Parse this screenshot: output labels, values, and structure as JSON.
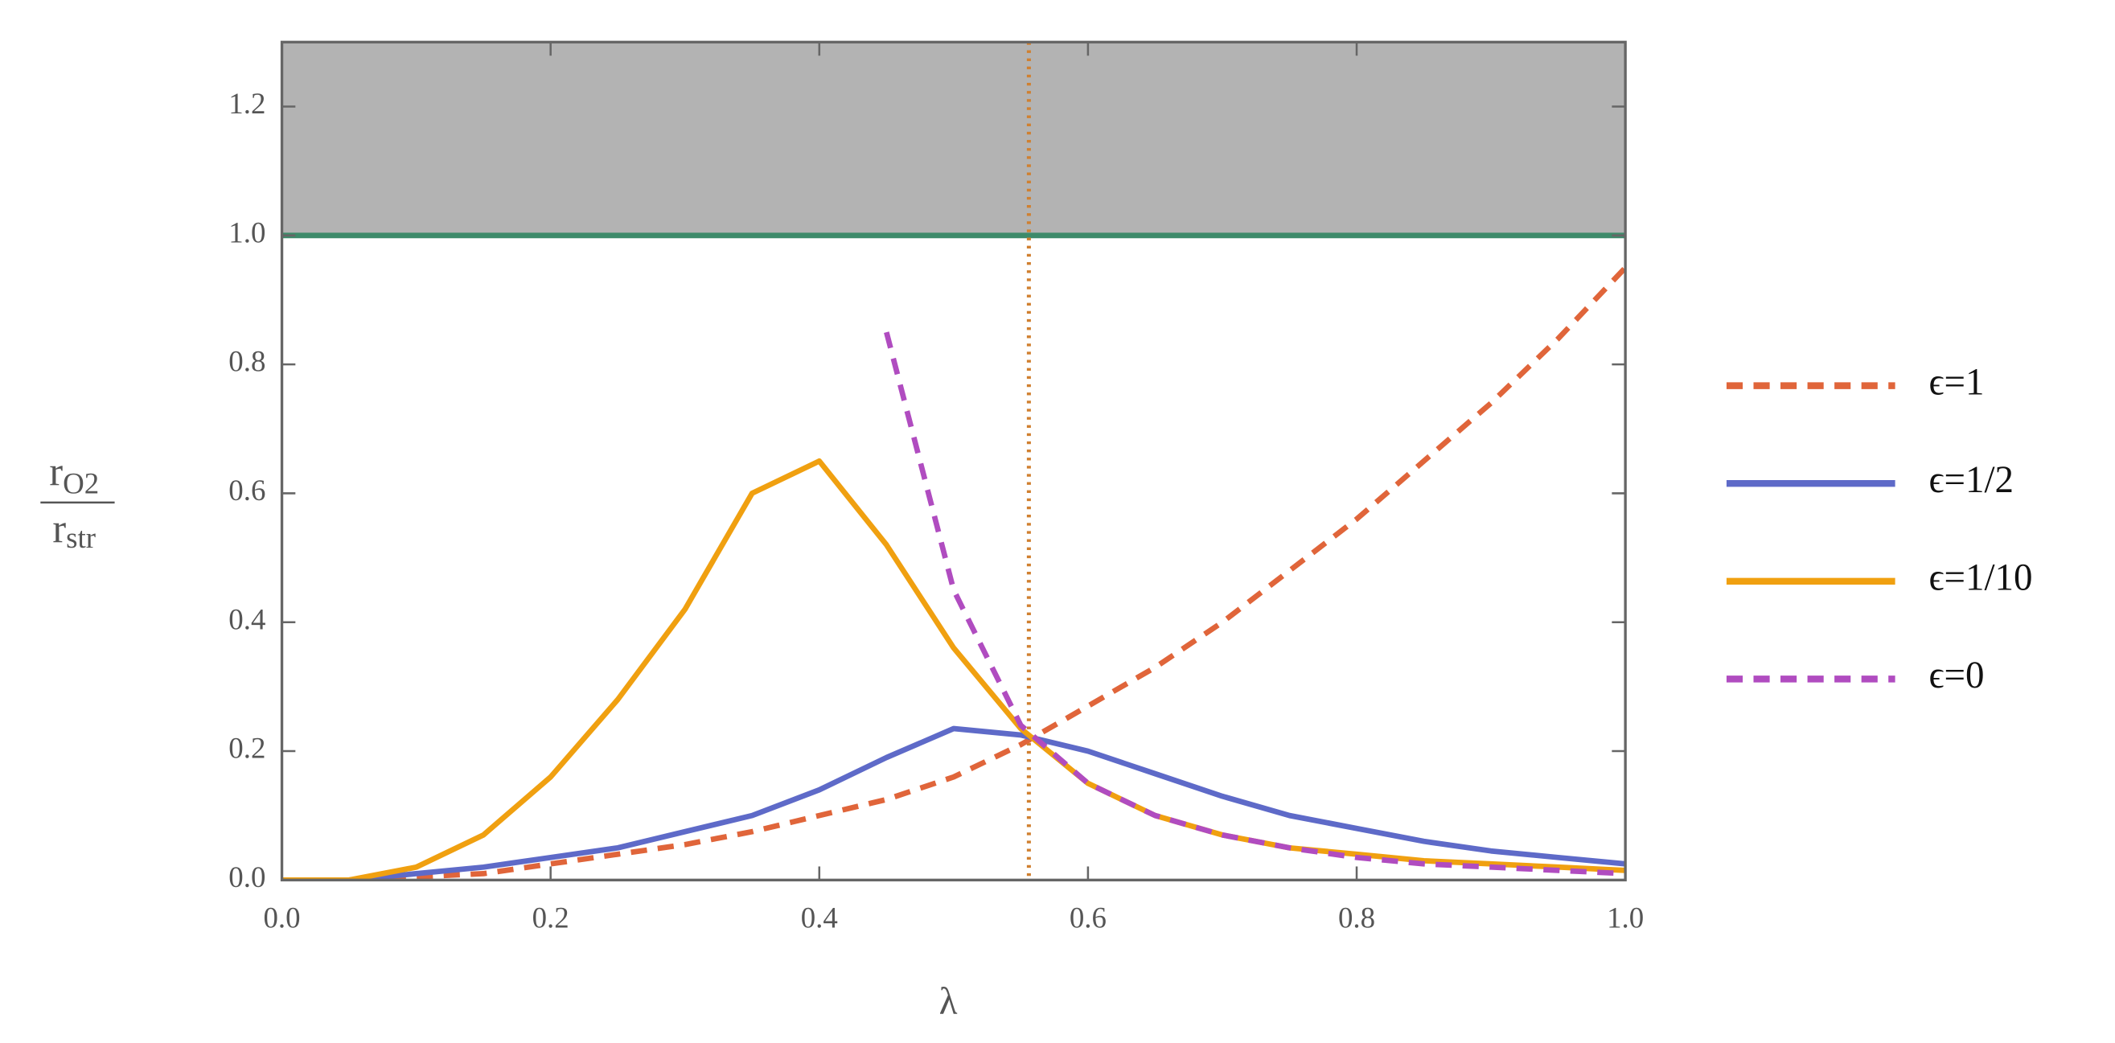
{
  "chart_data": {
    "type": "line",
    "xlabel": "λ",
    "ylabel": {
      "top": {
        "base": "r",
        "sub": "O2"
      },
      "bottom": {
        "base": "r",
        "sub": "str"
      }
    },
    "x": [
      0,
      0.05,
      0.1,
      0.15,
      0.2,
      0.25,
      0.3,
      0.35,
      0.4,
      0.45,
      0.5,
      0.55,
      0.6,
      0.65,
      0.7,
      0.75,
      0.8,
      0.85,
      0.9,
      0.95,
      1.0
    ],
    "series": [
      {
        "name": "ϵ=1",
        "color": "#e0653a",
        "dashed": true,
        "values": [
          0,
          0,
          0.005,
          0.01,
          0.025,
          0.04,
          0.055,
          0.075,
          0.1,
          0.125,
          0.16,
          0.21,
          0.27,
          0.33,
          0.4,
          0.48,
          0.56,
          0.65,
          0.74,
          0.84,
          0.95
        ]
      },
      {
        "name": "ϵ=1/2",
        "color": "#5e6ac8",
        "dashed": false,
        "values": [
          0,
          0,
          0.01,
          0.02,
          0.035,
          0.05,
          0.075,
          0.1,
          0.14,
          0.19,
          0.235,
          0.225,
          0.2,
          0.165,
          0.13,
          0.1,
          0.08,
          0.06,
          0.045,
          0.035,
          0.025
        ]
      },
      {
        "name": "ϵ=1/10",
        "color": "#f0a010",
        "dashed": false,
        "values": [
          0,
          0,
          0.02,
          0.07,
          0.16,
          0.28,
          0.42,
          0.6,
          0.65,
          0.52,
          0.36,
          0.235,
          0.15,
          0.1,
          0.07,
          0.05,
          0.04,
          0.03,
          0.025,
          0.02,
          0.015
        ]
      },
      {
        "name": "ϵ=0",
        "color": "#b04cc0",
        "dashed": true,
        "values": [
          null,
          null,
          null,
          null,
          null,
          null,
          null,
          null,
          null,
          0.85,
          0.45,
          0.24,
          0.15,
          0.1,
          0.07,
          0.05,
          0.035,
          0.025,
          0.02,
          0.015,
          0.01
        ]
      }
    ],
    "xlim": [
      0,
      1
    ],
    "ylim": [
      0,
      1.3
    ],
    "xticks": [
      {
        "value": 0,
        "label": "0.0"
      },
      {
        "value": 0.2,
        "label": "0.2"
      },
      {
        "value": 0.4,
        "label": "0.4"
      },
      {
        "value": 0.6,
        "label": "0.6"
      },
      {
        "value": 0.8,
        "label": "0.8"
      },
      {
        "value": 1,
        "label": "1.0"
      }
    ],
    "yticks": [
      {
        "value": 0,
        "label": "0.0"
      },
      {
        "value": 0.2,
        "label": "0.2"
      },
      {
        "value": 0.4,
        "label": "0.4"
      },
      {
        "value": 0.6,
        "label": "0.6"
      },
      {
        "value": 0.8,
        "label": "0.8"
      },
      {
        "value": 1,
        "label": "1.0"
      },
      {
        "value": 1.2,
        "label": "1.2"
      }
    ],
    "shade_above": 1,
    "shade_color": "#b3b3b3",
    "hline": 1,
    "hline_color": "#3d8a6a",
    "vline": 0.556,
    "vline_color": "#d08030",
    "legend": "right"
  }
}
